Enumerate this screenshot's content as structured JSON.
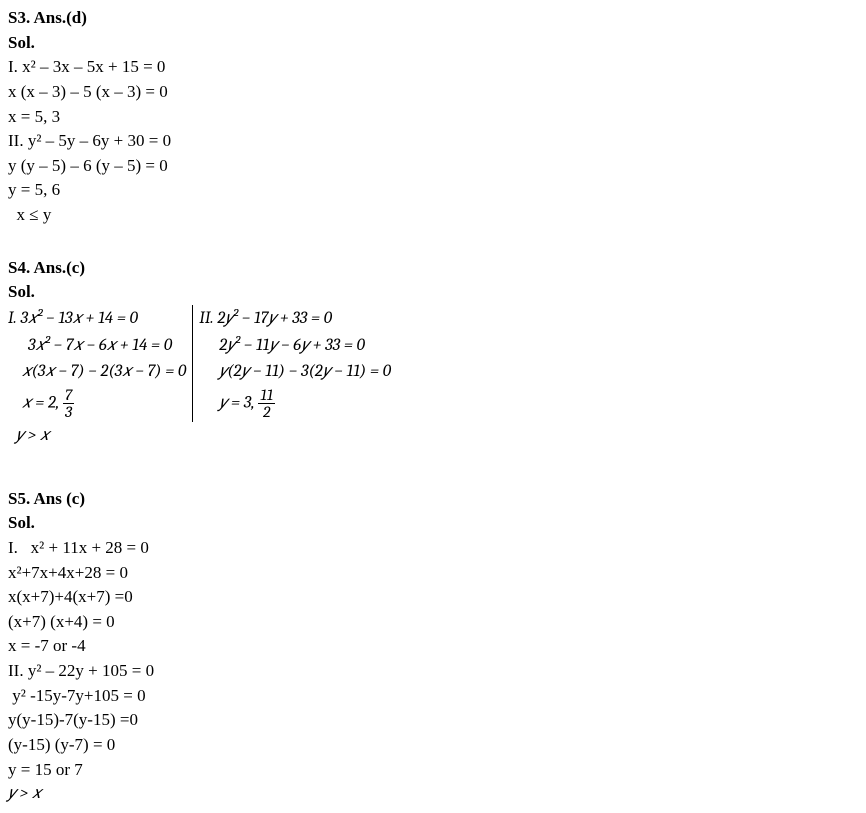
{
  "s3": {
    "header": "S3. Ans.(d)",
    "sol_label": "Sol.",
    "line1": "I. x² – 3x – 5x + 15 = 0",
    "line2": "x (x – 3) – 5 (x – 3) = 0",
    "line3": "x = 5, 3",
    "line4": "II. y² – 5y – 6y + 30 = 0",
    "line5": "y (y – 5) – 6 (y – 5) = 0",
    "line6": "y = 5, 6",
    "conclusion": "  x ≤ y"
  },
  "s4": {
    "header": "S4. Ans.(c)",
    "sol_label": "Sol.",
    "left": {
      "l1_pre": "I.  ",
      "l1": "3𝑥² − 13𝑥 + 14 = 0",
      "l2": "3𝑥² − 7𝑥 − 6𝑥 + 14 = 0",
      "l3": "𝑥(3𝑥 − 7) − 2(3𝑥 − 7) = 0",
      "l4_pre": "𝑥 = 2, ",
      "frac_num": "7",
      "frac_den": "3"
    },
    "right": {
      "r1_pre": "II. ",
      "r1": "2𝑦² − 17𝑦 + 33 = 0",
      "r2": "2𝑦² − 11𝑦 − 6𝑦 + 33 = 0",
      "r3": "𝑦(2𝑦 − 11) − 3(2𝑦 − 11) = 0",
      "r4_pre": "𝑦 = 3, ",
      "frac_num": "11",
      "frac_den": "2"
    },
    "conclusion": "𝑦 > 𝑥"
  },
  "s5": {
    "header": "S5. Ans (c)",
    "sol_label": "Sol.",
    "line1": "I.   x² + 11x + 28 = 0",
    "line2": "x²+7x+4x+28 = 0",
    "line3": "x(x+7)+4(x+7) =0",
    "line4": "(x+7) (x+4) = 0",
    "line5": "x = -7 or -4",
    "line6": "II. y² – 22y + 105 = 0",
    "line7": " y² -15y-7y+105 = 0",
    "line8": "y(y-15)-7(y-15) =0",
    "line9": "(y-15) (y-7) = 0",
    "line10": "y = 15 or 7",
    "conclusion": "𝑦 > 𝑥"
  }
}
